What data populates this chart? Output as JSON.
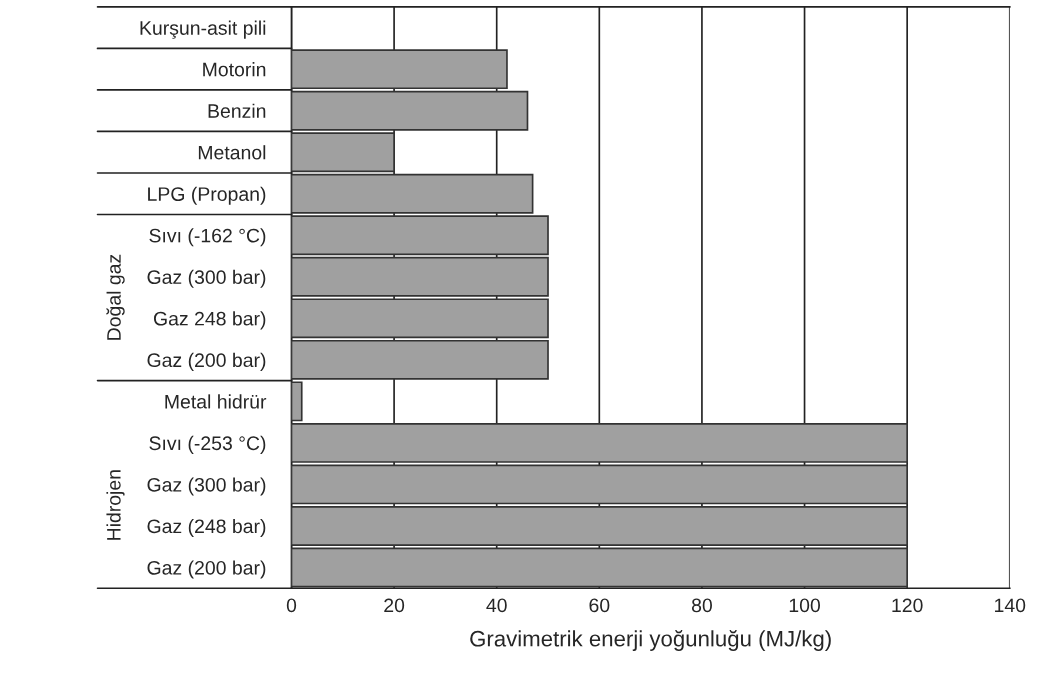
{
  "chart_data": {
    "type": "bar",
    "orientation": "horizontal",
    "xlabel": "Gravimetrik enerji yoğunluğu (MJ/kg)",
    "categories": [
      "Kurşun-asit pili",
      "Motorin",
      "Benzin",
      "Metanol",
      "LPG (Propan)",
      "Sıvı (-162 °C)",
      "Gaz (300 bar)",
      "Gaz 248 bar)",
      "Gaz (200 bar)",
      "Metal hidrür",
      "Sıvı (-253 °C)",
      "Gaz (300 bar)",
      "Gaz (248 bar)",
      "Gaz (200 bar)"
    ],
    "values": [
      0,
      42,
      46,
      20,
      47,
      50,
      50,
      50,
      50,
      2,
      120,
      120,
      120,
      120
    ],
    "color": "#a0a0a0",
    "xlim": [
      0,
      140
    ],
    "xticks": [
      0,
      20,
      40,
      60,
      80,
      100,
      120,
      140
    ],
    "grid": "x",
    "annotations": [
      "Doğal gaz",
      "Hidrojen"
    ]
  }
}
